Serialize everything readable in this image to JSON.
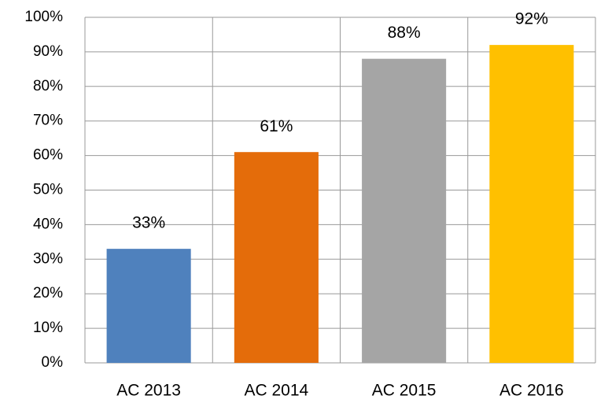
{
  "chart_data": {
    "type": "bar",
    "categories": [
      "AC 2013",
      "AC 2014",
      "AC 2015",
      "AC 2016"
    ],
    "values": [
      33,
      61,
      88,
      92
    ],
    "value_labels": [
      "33%",
      "61%",
      "88%",
      "92%"
    ],
    "colors": [
      "#4f81bd",
      "#e46c0a",
      "#a5a5a5",
      "#ffc000"
    ],
    "ylim": [
      0,
      100
    ],
    "yticks": [
      {
        "value": 0,
        "label": "0%"
      },
      {
        "value": 10,
        "label": "10%"
      },
      {
        "value": 20,
        "label": "20%"
      },
      {
        "value": 30,
        "label": "30%"
      },
      {
        "value": 40,
        "label": "40%"
      },
      {
        "value": 50,
        "label": "50%"
      },
      {
        "value": 60,
        "label": "60%"
      },
      {
        "value": 70,
        "label": "70%"
      },
      {
        "value": 80,
        "label": "80%"
      },
      {
        "value": 90,
        "label": "90%"
      },
      {
        "value": 100,
        "label": "100%"
      }
    ],
    "grid": true
  }
}
